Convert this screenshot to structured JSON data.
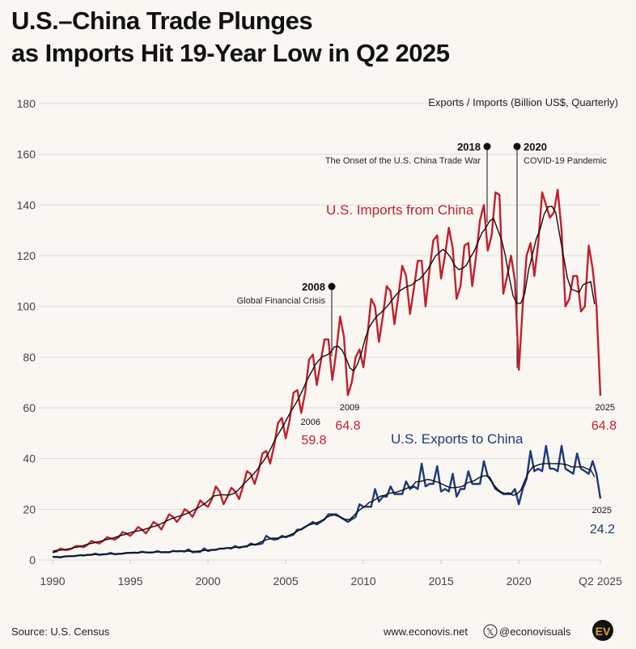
{
  "title_line1": "U.S.–China Trade Plunges",
  "title_line2": "as Imports Hit 19-Year Low in Q2 2025",
  "footer": {
    "source": "Source: U.S. Census",
    "website": "www.econovis.net",
    "handle": "@econovisuals",
    "logo_text": "EV"
  },
  "colors": {
    "imports": "#c0202e",
    "exports": "#1b3a7a",
    "average": "#111111",
    "grid": "#dddddd"
  },
  "chart_data": {
    "type": "line",
    "title": "U.S.–China Trade Plunges as Imports Hit 19-Year Low in Q2 2025",
    "ylabel": "Exports / Imports (Billion US$, Quarterly)",
    "ylim": [
      0,
      180
    ],
    "yticks": [
      "0",
      "20",
      "40",
      "60",
      "80",
      "100",
      "120",
      "140",
      "160",
      "180"
    ],
    "xticks": [
      "1990",
      "1995",
      "2000",
      "2005",
      "2010",
      "2015",
      "2020",
      "Q2 2025"
    ],
    "x_start": "1990 Q1",
    "x_end": "2025 Q2",
    "grid": true,
    "series": [
      {
        "name": "U.S. Imports from China",
        "values": [
          3,
          3.5,
          4.5,
          4,
          4,
          4.5,
          5.5,
          5.5,
          5,
          6,
          7.5,
          7,
          6.5,
          7.5,
          9,
          8.5,
          8,
          9,
          11,
          10.5,
          9.5,
          11,
          13,
          12,
          10.5,
          12.5,
          15,
          14,
          12,
          15,
          18,
          17,
          15,
          17,
          20,
          19,
          17,
          20,
          23.5,
          22,
          21,
          24,
          29,
          27,
          22,
          25,
          28.5,
          27,
          24,
          29,
          35,
          34,
          30,
          35,
          42,
          43,
          38,
          45,
          54,
          56,
          48,
          55,
          66,
          67,
          58,
          66,
          79,
          81,
          69,
          78,
          87,
          87,
          71,
          82,
          96,
          88,
          65,
          70,
          80,
          83,
          76,
          88,
          103,
          100,
          86,
          96,
          108,
          106,
          93,
          104,
          116,
          112,
          97,
          107,
          118,
          118,
          100,
          114,
          126,
          128,
          111,
          120,
          131,
          123,
          103,
          108,
          124,
          125,
          108,
          120,
          134,
          140,
          122,
          128,
          145,
          144,
          105,
          112,
          120,
          110,
          75,
          100,
          120,
          125,
          112,
          125,
          145,
          140,
          135,
          137,
          146,
          130,
          100,
          103,
          112,
          112,
          98,
          100,
          124,
          115,
          100,
          64.8
        ]
      },
      {
        "name": "U.S. Exports to China",
        "values": [
          1.2,
          1.2,
          1,
          1.4,
          1.5,
          1.5,
          1.6,
          1.9,
          1.8,
          2,
          2,
          2.5,
          2,
          2.2,
          2.3,
          2.8,
          2.2,
          2.4,
          2.5,
          2.8,
          2.8,
          2.9,
          2.8,
          3.3,
          3,
          2.9,
          3,
          3.5,
          3,
          3.1,
          3,
          3.6,
          3.4,
          3.5,
          3.3,
          4.2,
          3,
          3.2,
          3.2,
          4.6,
          3.5,
          4,
          4,
          4.5,
          4.5,
          4.8,
          4.5,
          5.5,
          4.8,
          5.2,
          5.3,
          6.5,
          6,
          6.2,
          6.5,
          9.5,
          8.5,
          8,
          8.3,
          9.5,
          9,
          9.5,
          10,
          12,
          12,
          13,
          14,
          15,
          14,
          15,
          16,
          18,
          18,
          18,
          17,
          16,
          15,
          16,
          17,
          22,
          21,
          21,
          21,
          28,
          23,
          25,
          25,
          29,
          26,
          26,
          26,
          31,
          28,
          29,
          28,
          38,
          29,
          30,
          30,
          37,
          27,
          28,
          27,
          34,
          25,
          28,
          28,
          35,
          30,
          30,
          30,
          39,
          33,
          31,
          28,
          27,
          26,
          26,
          26,
          28,
          22,
          28,
          32,
          43,
          35,
          36,
          35,
          45,
          36,
          36,
          35,
          45,
          36,
          35,
          34,
          42,
          36,
          35,
          34,
          39,
          34,
          24.2
        ]
      }
    ],
    "annotations": [
      {
        "year": "2008",
        "text": "Global Financial Crisis"
      },
      {
        "year": "2018",
        "text": "The Onset of the U.S. China Trade War"
      },
      {
        "year": "2020",
        "text": "COVID-19 Pandemic"
      }
    ],
    "data_labels": [
      {
        "year": "2006",
        "value": "59.8"
      },
      {
        "year": "2009",
        "value": "64.8"
      },
      {
        "year": "2025",
        "value": "64.8"
      },
      {
        "year": "2025",
        "value": "24.2"
      }
    ],
    "series_labels": {
      "imports": "U.S. Imports from China",
      "exports": "U.S. Exports to China"
    }
  }
}
